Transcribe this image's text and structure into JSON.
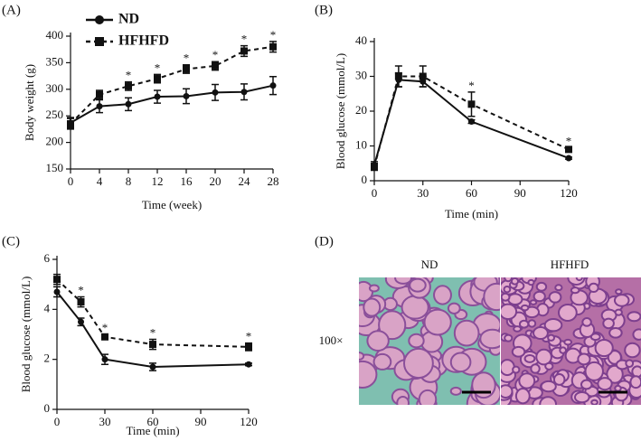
{
  "chart_data": [
    {
      "type": "line",
      "panel": "(A)",
      "x_label": "Time (week)",
      "y_label": "Body weight (g)",
      "x": [
        0,
        4,
        8,
        12,
        16,
        20,
        24,
        28
      ],
      "xlim": [
        0,
        28
      ],
      "xticks": [
        0,
        4,
        8,
        12,
        16,
        20,
        24,
        28
      ],
      "ylim": [
        150,
        400
      ],
      "yticks": [
        150,
        200,
        250,
        300,
        350,
        400
      ],
      "legend": "upper left",
      "series": [
        {
          "name": "ND",
          "color": "#111111",
          "line_style": "solid",
          "marker": "circle",
          "values": [
            237,
            268,
            272,
            286,
            287,
            294,
            295,
            307
          ],
          "errors": [
            10,
            12,
            12,
            12,
            14,
            15,
            15,
            17
          ]
        },
        {
          "name": "HFHFD",
          "color": "#111111",
          "line_style": "dashed",
          "marker": "square",
          "values": [
            235,
            290,
            306,
            320,
            338,
            344,
            372,
            380
          ],
          "errors": [
            10,
            8,
            8,
            8,
            8,
            8,
            10,
            10
          ]
        }
      ],
      "annotations": [
        {
          "text": "*",
          "x": 8
        },
        {
          "text": "*",
          "x": 12
        },
        {
          "text": "*",
          "x": 16
        },
        {
          "text": "*",
          "x": 20
        },
        {
          "text": "*",
          "x": 24
        },
        {
          "text": "*",
          "x": 28
        }
      ]
    },
    {
      "type": "line",
      "panel": "(B)",
      "x_label": "Time (min)",
      "y_label": "Blood glucose (mmol/L)",
      "x": [
        0,
        15,
        30,
        60,
        120
      ],
      "xlim": [
        0,
        120
      ],
      "xticks": [
        0,
        30,
        60,
        90,
        120
      ],
      "ylim": [
        0,
        40
      ],
      "yticks": [
        0,
        10,
        20,
        30,
        40
      ],
      "series": [
        {
          "color": "#111111",
          "line_style": "solid",
          "marker": "circle",
          "values": [
            4.5,
            29,
            28.5,
            17,
            6.5
          ],
          "errors": [
            1,
            2,
            1.5,
            0.5,
            0.3
          ]
        },
        {
          "color": "#111111",
          "line_style": "dashed",
          "marker": "square",
          "values": [
            4,
            30,
            30,
            22,
            9
          ],
          "errors": [
            1,
            3,
            3,
            3.5,
            0.5
          ]
        }
      ],
      "annotations": [
        {
          "text": "*",
          "x": 60
        },
        {
          "text": "*",
          "x": 120
        }
      ]
    },
    {
      "type": "line",
      "panel": "(C)",
      "x_label": "Time (min)",
      "y_label": "Blood glucose (mmol/L)",
      "x": [
        0,
        15,
        30,
        60,
        120
      ],
      "xlim": [
        0,
        120
      ],
      "xticks": [
        0,
        30,
        60,
        90,
        120
      ],
      "ylim": [
        0,
        6
      ],
      "yticks": [
        0,
        2,
        4,
        6
      ],
      "series": [
        {
          "color": "#111111",
          "line_style": "solid",
          "marker": "circle",
          "values": [
            4.7,
            3.5,
            2.0,
            1.7,
            1.8
          ],
          "errors": [
            0.2,
            0.15,
            0.2,
            0.15,
            0.05
          ]
        },
        {
          "color": "#111111",
          "line_style": "dashed",
          "marker": "square",
          "values": [
            5.2,
            4.3,
            2.9,
            2.6,
            2.5
          ],
          "errors": [
            0.2,
            0.2,
            0.1,
            0.2,
            0.15
          ]
        }
      ],
      "annotations": [
        {
          "text": "*",
          "x": 15
        },
        {
          "text": "*",
          "x": 30
        },
        {
          "text": "*",
          "x": 60
        },
        {
          "text": "*",
          "x": 120
        }
      ]
    },
    {
      "type": "image",
      "panel": "(D)",
      "labels": [
        "ND",
        "HFHFD"
      ],
      "magnification": "100×"
    }
  ]
}
